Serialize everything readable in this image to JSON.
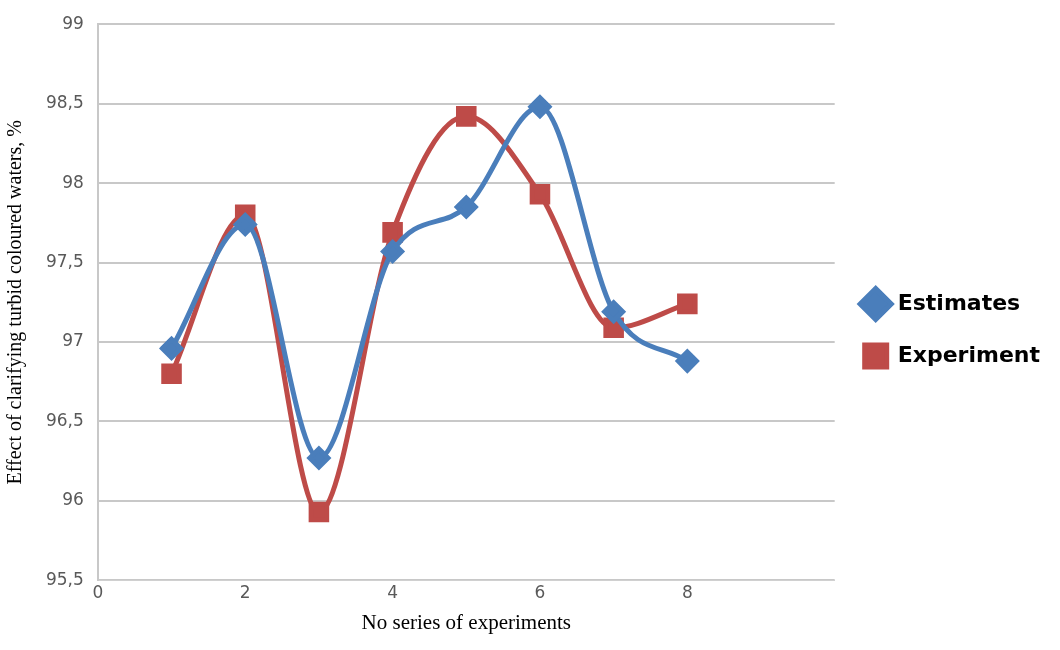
{
  "chart_data": {
    "type": "line",
    "xlabel": "No series of experiments",
    "ylabel": "Effect of clarifying turbid coloured waters, %",
    "x": [
      1,
      2,
      3,
      4,
      5,
      6,
      7,
      8
    ],
    "series": [
      {
        "name": "Estimates",
        "color": "#4a7ebb",
        "marker": "diamond",
        "values": [
          96.96,
          97.74,
          96.27,
          97.57,
          97.85,
          98.48,
          97.19,
          96.88
        ]
      },
      {
        "name": "Experiment",
        "color": "#be4b48",
        "marker": "square",
        "values": [
          96.8,
          97.8,
          95.93,
          97.69,
          98.42,
          97.93,
          97.09,
          97.24
        ]
      }
    ],
    "xlim": [
      0,
      10
    ],
    "xticks": [
      0,
      2,
      4,
      6,
      8
    ],
    "ylim": [
      95.5,
      99
    ],
    "yticks": [
      {
        "value": 95.5,
        "label": "95,5"
      },
      96,
      {
        "value": 96.5,
        "label": "96,5"
      },
      97,
      {
        "value": 97.5,
        "label": "97,5"
      },
      98,
      {
        "value": 98.5,
        "label": "98,5"
      },
      99
    ],
    "grid": "y",
    "legend": "right"
  }
}
